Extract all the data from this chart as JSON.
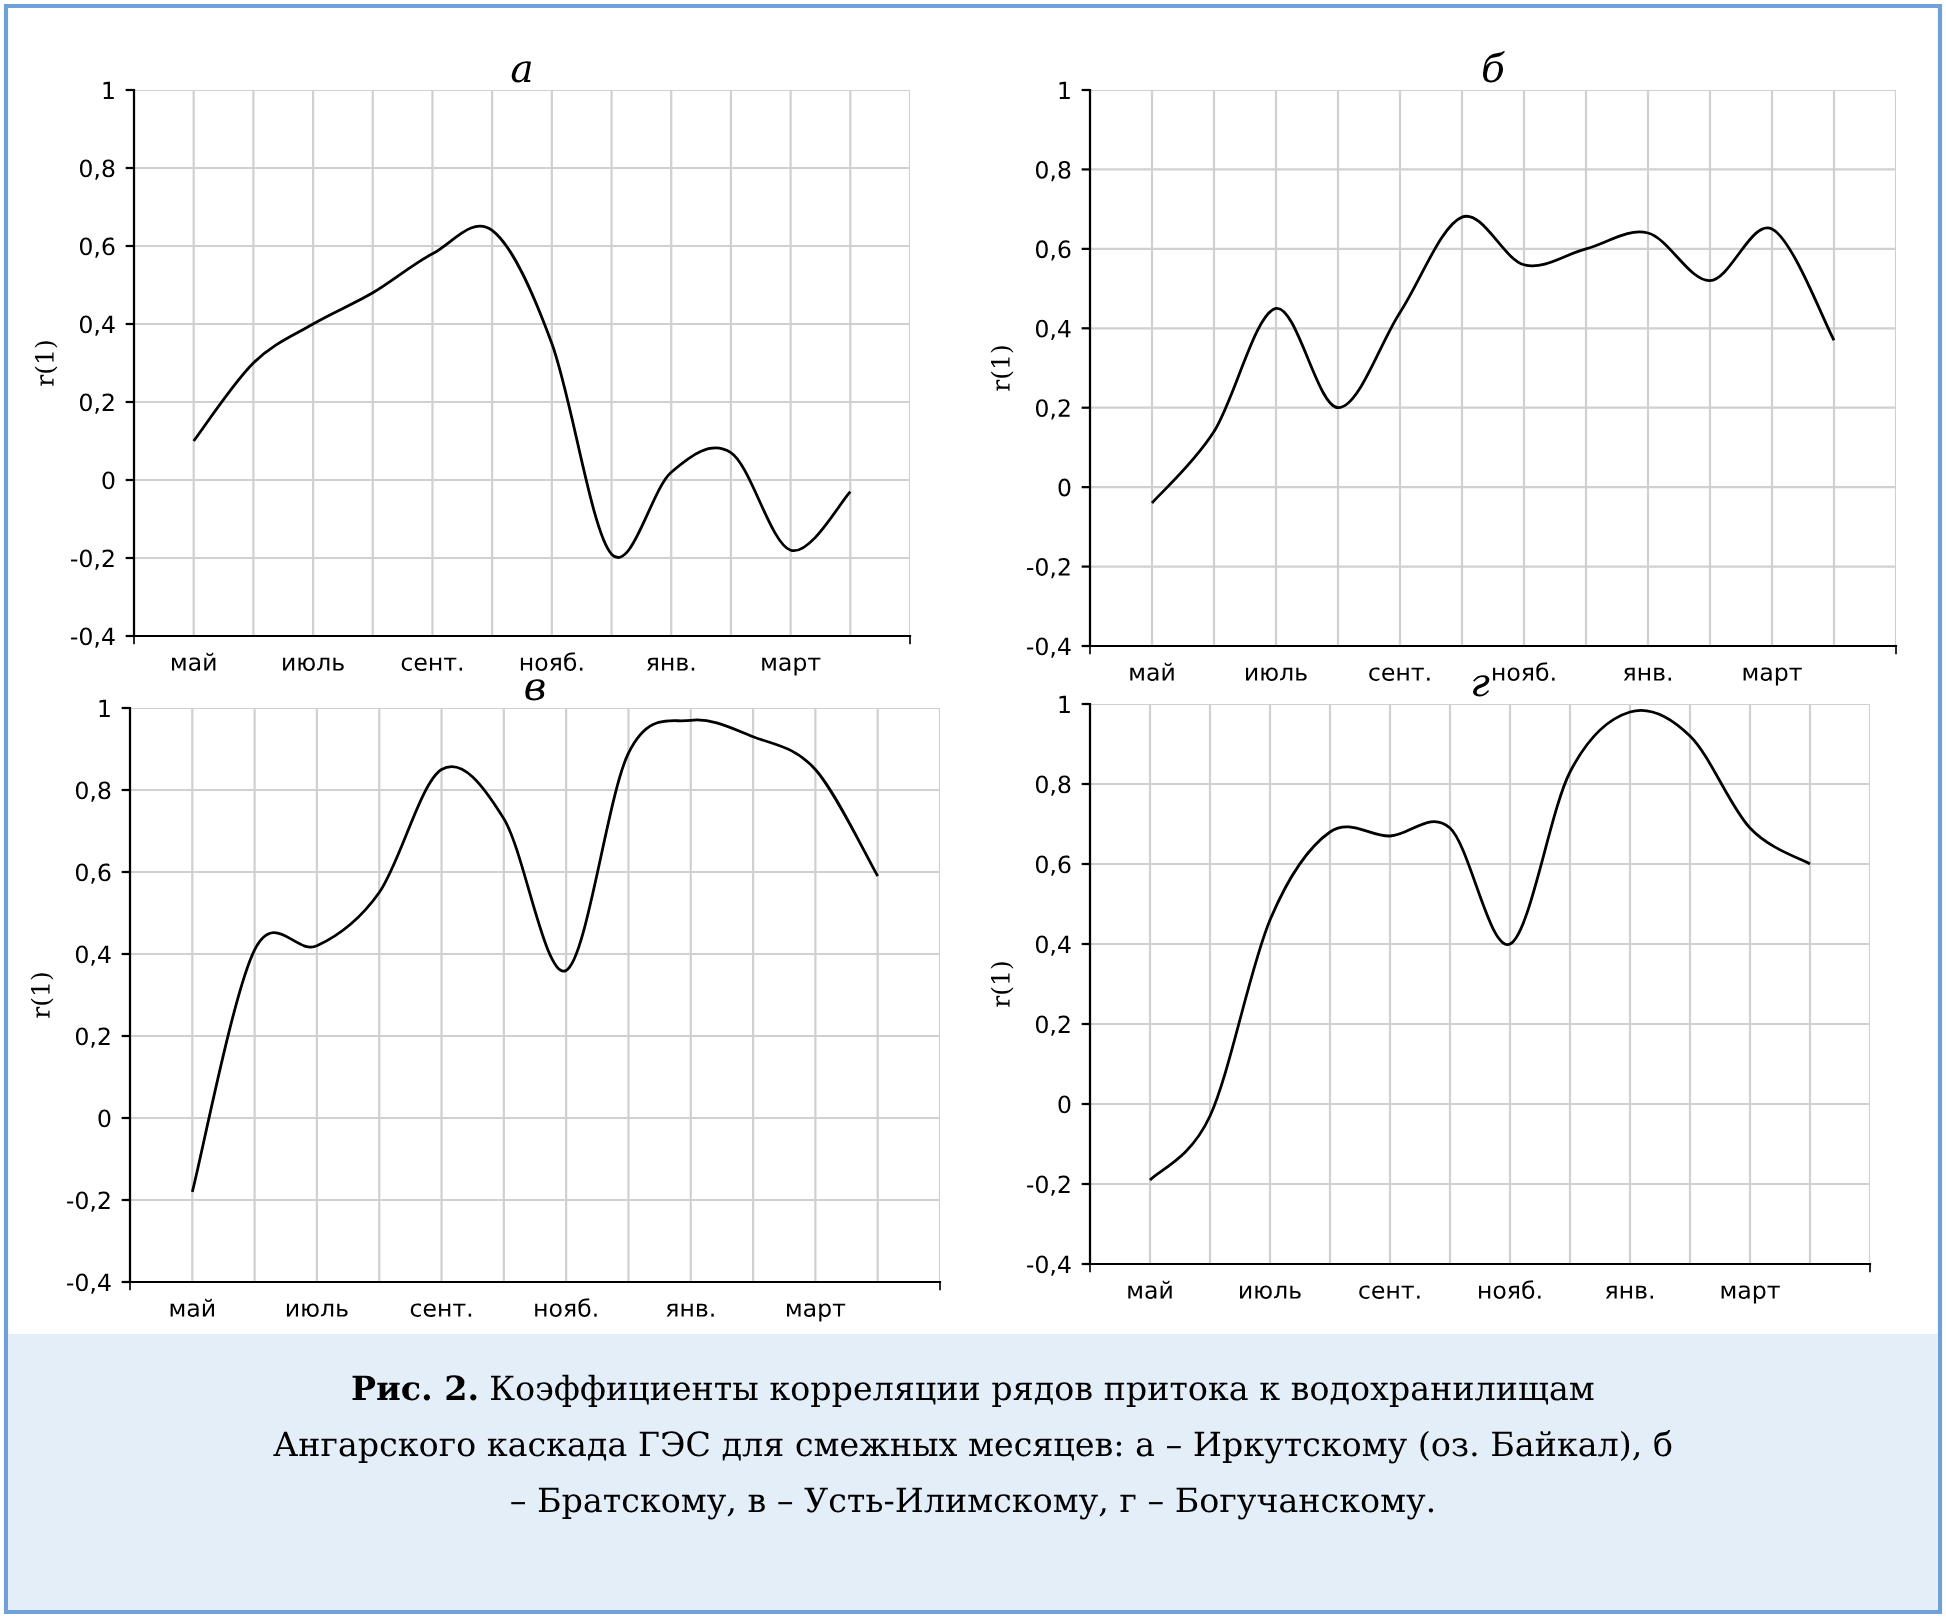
{
  "chart_data": [
    {
      "type": "line",
      "title": "а",
      "ylabel": "r(1)",
      "categories": [
        "май",
        null,
        "июль",
        null,
        "сент.",
        null,
        "нояб.",
        null,
        "янв.",
        null,
        "март",
        null
      ],
      "color": "#000000",
      "marker": "none",
      "line_style": "solid",
      "values": [
        0.1,
        0.3,
        0.4,
        0.48,
        0.58,
        0.64,
        0.35,
        -0.19,
        0.02,
        0.07,
        -0.18,
        -0.03
      ],
      "ylim": [
        -0.4,
        1
      ],
      "yticks": [
        {
          "value": -0.4,
          "label": "-0,4"
        },
        {
          "value": -0.2,
          "label": "-0,2"
        },
        0,
        {
          "value": 0.2,
          "label": "0,2"
        },
        {
          "value": 0.4,
          "label": "0,4"
        },
        {
          "value": 0.6,
          "label": "0,6"
        },
        {
          "value": 0.8,
          "label": "0,8"
        },
        1
      ],
      "grid": true,
      "legend": false
    },
    {
      "type": "line",
      "title": "б",
      "ylabel": "r(1)",
      "categories": [
        "май",
        null,
        "июль",
        null,
        "сент.",
        null,
        "нояб.",
        null,
        "янв.",
        null,
        "март",
        null
      ],
      "color": "#000000",
      "marker": "none",
      "line_style": "solid",
      "values": [
        -0.04,
        0.14,
        0.45,
        0.2,
        0.44,
        0.68,
        0.56,
        0.6,
        0.64,
        0.52,
        0.65,
        0.37
      ],
      "ylim": [
        -0.4,
        1
      ],
      "yticks": [
        {
          "value": -0.4,
          "label": "-0,4"
        },
        {
          "value": -0.2,
          "label": "-0,2"
        },
        0,
        {
          "value": 0.2,
          "label": "0,2"
        },
        {
          "value": 0.4,
          "label": "0,4"
        },
        {
          "value": 0.6,
          "label": "0,6"
        },
        {
          "value": 0.8,
          "label": "0,8"
        },
        1
      ],
      "grid": true,
      "legend": false
    },
    {
      "type": "line",
      "title": "в",
      "ylabel": "r(1)",
      "categories": [
        "май",
        null,
        "июль",
        null,
        "сент.",
        null,
        "нояб.",
        null,
        "янв.",
        null,
        "март",
        null
      ],
      "color": "#000000",
      "marker": "none",
      "line_style": "solid",
      "values": [
        -0.18,
        0.41,
        0.42,
        0.55,
        0.85,
        0.73,
        0.36,
        0.89,
        0.97,
        0.93,
        0.85,
        0.59
      ],
      "ylim": [
        -0.4,
        1
      ],
      "yticks": [
        {
          "value": -0.4,
          "label": "-0,4"
        },
        {
          "value": -0.2,
          "label": "-0,2"
        },
        0,
        {
          "value": 0.2,
          "label": "0,2"
        },
        {
          "value": 0.4,
          "label": "0,4"
        },
        {
          "value": 0.6,
          "label": "0,6"
        },
        {
          "value": 0.8,
          "label": "0,8"
        },
        1
      ],
      "grid": true,
      "legend": false
    },
    {
      "type": "line",
      "title": "г",
      "ylabel": "r(1)",
      "categories": [
        "май",
        null,
        "июль",
        null,
        "сент.",
        null,
        "нояб.",
        null,
        "янв.",
        null,
        "март",
        null
      ],
      "color": "#000000",
      "marker": "none",
      "line_style": "solid",
      "values": [
        -0.19,
        -0.03,
        0.46,
        0.68,
        0.67,
        0.69,
        0.4,
        0.83,
        0.98,
        0.92,
        0.69,
        0.6
      ],
      "ylim": [
        -0.4,
        1
      ],
      "yticks": [
        {
          "value": -0.4,
          "label": "-0,4"
        },
        {
          "value": -0.2,
          "label": "-0,2"
        },
        0,
        {
          "value": 0.2,
          "label": "0,2"
        },
        {
          "value": 0.4,
          "label": "0,4"
        },
        {
          "value": 0.6,
          "label": "0,6"
        },
        {
          "value": 0.8,
          "label": "0,8"
        },
        1
      ],
      "grid": true,
      "legend": false,
      "annotations": [
        "Рис. 2.",
        "Коэффициенты корреляции рядов притока к водохранилищам Ангарского каскада ГЭС для смежных месяцев: а – Иркутскому (оз. Байкал), б – Братскому, в – Усть-Илимскому, г – Богучанскому."
      ]
    }
  ]
}
